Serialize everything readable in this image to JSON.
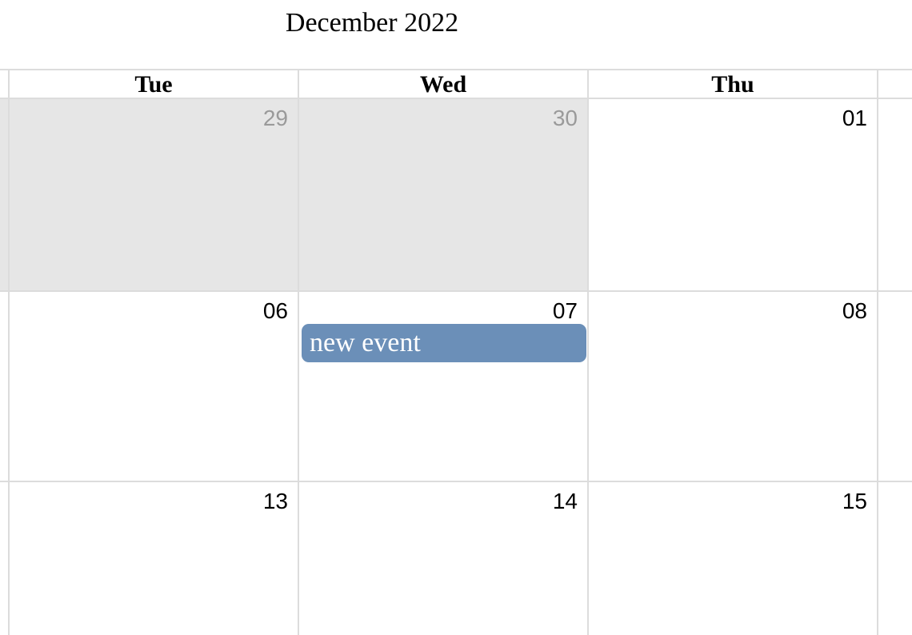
{
  "calendar": {
    "title": "December 2022",
    "weekdays": [
      "Tue",
      "Wed",
      "Thu"
    ],
    "weeks": [
      {
        "days": [
          {
            "label": "29",
            "other_month": true
          },
          {
            "label": "30",
            "other_month": true
          },
          {
            "label": "01",
            "other_month": false
          }
        ]
      },
      {
        "days": [
          {
            "label": "06",
            "other_month": false
          },
          {
            "label": "07",
            "other_month": false
          },
          {
            "label": "08",
            "other_month": false
          }
        ]
      },
      {
        "days": [
          {
            "label": "13",
            "other_month": false
          },
          {
            "label": "14",
            "other_month": false
          },
          {
            "label": "15",
            "other_month": false
          }
        ]
      }
    ],
    "events": [
      {
        "title": "new event",
        "color": "#6b8fb8"
      }
    ],
    "colors": {
      "grid_line": "#dcdcdc",
      "other_month_bg": "#e6e6e6",
      "other_month_text": "#9a9a9a",
      "event_bg": "#6b8fb8"
    }
  }
}
